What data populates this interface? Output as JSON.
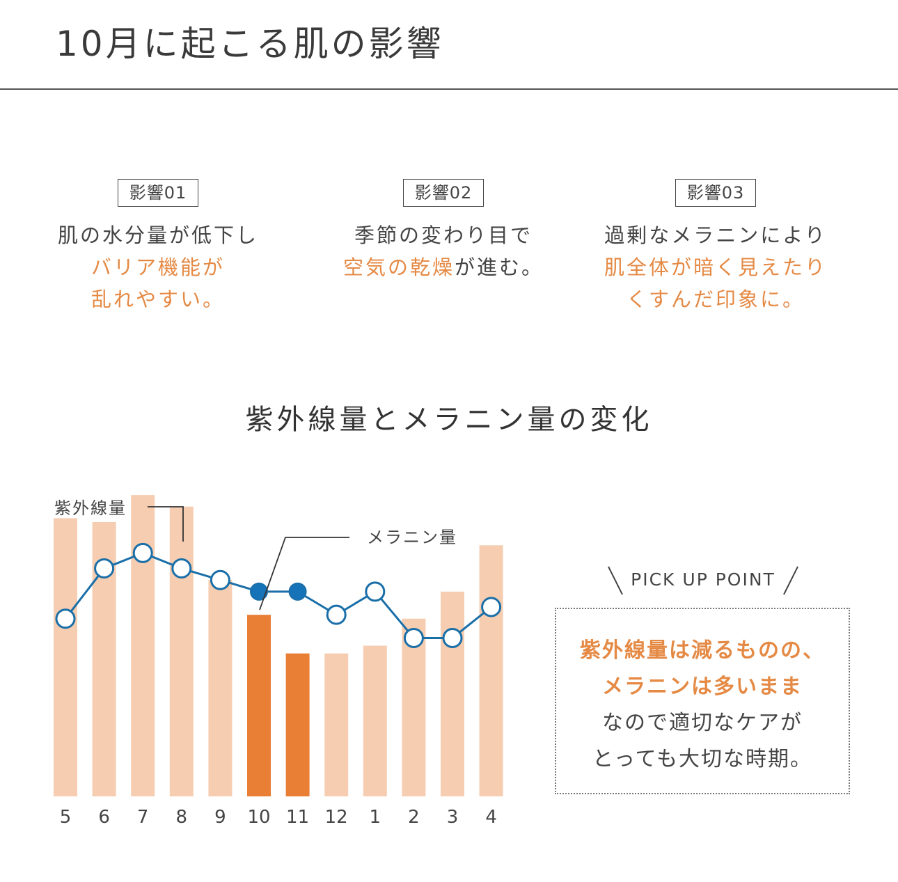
{
  "header": {
    "title": "10月に起こる肌の影響"
  },
  "effects": [
    {
      "tag": "影響01",
      "line1": "肌の水分量が低下し",
      "line2": "バリア機能が",
      "line3": "乱れやすい。"
    },
    {
      "tag": "影響02",
      "line1": "季節の変わり目で",
      "line2_hl": "空気の乾燥",
      "line2_rest": "が進む。"
    },
    {
      "tag": "影響03",
      "line1": "過剰なメラニンにより",
      "line2": "肌全体が暗く見えたり",
      "line3": "くすんだ印象に。"
    }
  ],
  "chart_section": {
    "title": "紫外線量とメラニン量の変化"
  },
  "chart_data": {
    "type": "bar",
    "categories": [
      "5",
      "6",
      "7",
      "8",
      "9",
      "10",
      "11",
      "12",
      "1",
      "2",
      "3",
      "4"
    ],
    "series": [
      {
        "name": "紫外線量",
        "type": "bar",
        "values": [
          72,
          71,
          78,
          75,
          56,
          47,
          37,
          37,
          39,
          46,
          53,
          65
        ],
        "highlight": [
          5,
          6
        ]
      },
      {
        "name": "メラニン量",
        "type": "line",
        "values": [
          46,
          59,
          63,
          59,
          56,
          53,
          53,
          47,
          53,
          41,
          41,
          49
        ],
        "highlight": [
          5,
          6
        ]
      }
    ],
    "ylim": [
      0,
      80
    ],
    "colors": {
      "bar": "#f6cdb1",
      "bar_highlight": "#e87f35",
      "line": "#1a6fa8",
      "marker_highlight": "#1673b8",
      "marker_fill": "#ffffff"
    }
  },
  "pickup": {
    "label": "PICK UP POINT",
    "line1": "紫外線量は減るものの、",
    "line2": "メラニンは多いまま",
    "line3": "なので適切なケアが",
    "line4": "とっても大切な時期。"
  }
}
